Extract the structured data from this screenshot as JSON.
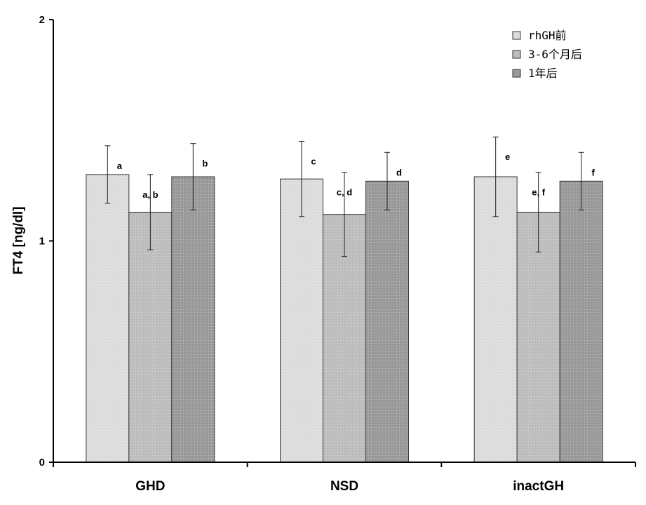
{
  "chart_data": {
    "type": "bar",
    "ylabel": "FT4 [ng/dl]",
    "xlabel": "",
    "ylim": [
      0,
      2
    ],
    "yticks": [
      "0",
      "1",
      "2"
    ],
    "grid": false,
    "legend_position": "top-right",
    "categories": [
      "GHD",
      "NSD",
      "inactGH"
    ],
    "series": [
      {
        "name": "rhGH前",
        "color": "#dcdcdc",
        "values": [
          1.3,
          1.28,
          1.29
        ],
        "err_low": [
          1.17,
          1.11,
          1.11
        ],
        "err_high": [
          1.43,
          1.45,
          1.47
        ],
        "labels": [
          "a",
          "c",
          "e"
        ]
      },
      {
        "name": "3-6个月后",
        "color": "#bdbdbd",
        "values": [
          1.13,
          1.12,
          1.13
        ],
        "err_low": [
          0.96,
          0.93,
          0.95
        ],
        "err_high": [
          1.3,
          1.31,
          1.31
        ],
        "labels": [
          "a, b",
          "c, d",
          "e, f"
        ]
      },
      {
        "name": "1年后",
        "color": "#9a9a9a",
        "values": [
          1.29,
          1.27,
          1.27
        ],
        "err_low": [
          1.14,
          1.14,
          1.14
        ],
        "err_high": [
          1.44,
          1.4,
          1.4
        ],
        "labels": [
          "b",
          "d",
          "f"
        ]
      }
    ]
  }
}
